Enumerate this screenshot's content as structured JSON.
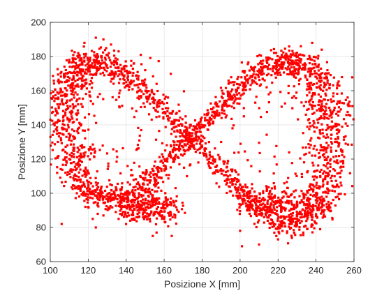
{
  "chart_data": {
    "type": "scatter",
    "title": "",
    "xlabel": "Posizione X [mm]",
    "ylabel": "Posizione Y [mm]",
    "xlim": [
      100,
      260
    ],
    "ylim": [
      60,
      200
    ],
    "xticks": [
      100,
      120,
      140,
      160,
      180,
      200,
      220,
      240,
      260
    ],
    "yticks": [
      60,
      80,
      100,
      120,
      140,
      160,
      180,
      200
    ],
    "grid": true,
    "legend": "none",
    "marker": "square",
    "marker_color": "#ff0000",
    "n_points_approx": 3000,
    "pattern": "figure-eight (lemniscate) trajectory, two lobes crossing near (185, 130)",
    "series": [
      {
        "points_x": [
          118,
          124,
          128,
          132,
          136,
          112,
          106,
          103,
          104,
          108,
          114,
          120,
          128,
          136,
          144,
          150,
          155,
          160,
          166,
          172,
          178,
          184,
          190,
          196,
          202,
          208,
          214,
          220,
          226,
          232,
          238,
          243,
          246,
          247,
          244,
          238,
          230,
          222,
          216,
          210,
          204,
          198,
          194,
          190,
          186,
          182,
          178,
          174,
          168,
          162,
          156,
          150,
          144,
          140,
          148,
          156,
          160,
          164,
          200,
          205,
          210,
          215,
          225,
          235,
          240,
          245,
          248,
          250
        ],
        "points_y": [
          188,
          191,
          190,
          187,
          183,
          178,
          165,
          148,
          130,
          112,
          100,
          92,
          87,
          85,
          85,
          86,
          88,
          95,
          103,
          110,
          118,
          124,
          130,
          138,
          145,
          153,
          162,
          172,
          180,
          186,
          188,
          184,
          172,
          150,
          125,
          105,
          95,
          92,
          93,
          95,
          98,
          102,
          108,
          114,
          120,
          126,
          133,
          140,
          148,
          156,
          164,
          172,
          176,
          165,
          102,
          97,
          85,
          75,
          78,
          88,
          70,
          92,
          98,
          91,
          100,
          110,
          125,
          130
        ]
      }
    ]
  }
}
